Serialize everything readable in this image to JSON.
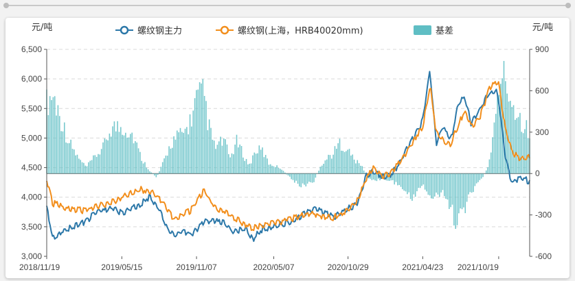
{
  "chart_data": {
    "type": "line+bar",
    "title": "",
    "y_left_unit": "元/吨",
    "y_right_unit": "元/吨",
    "y_left": {
      "min": 3000,
      "max": 6500,
      "ticks": [
        3000,
        3500,
        4000,
        4500,
        5000,
        5500,
        6000,
        6500
      ],
      "tick_labels": [
        "3,000",
        "3,500",
        "4,000",
        "4,500",
        "5,000",
        "5,500",
        "6,000",
        "6,500"
      ]
    },
    "y_right": {
      "min": -600,
      "max": 900,
      "ticks": [
        -600,
        -300,
        0,
        300,
        600,
        900
      ],
      "tick_labels": [
        "-600",
        "-300",
        "0",
        "300",
        "600",
        "900"
      ]
    },
    "x_tick_labels": [
      "2018/11/19",
      "2019/05/15",
      "2019/11/07",
      "2020/05/07",
      "2020/10/29",
      "2021/04/23",
      "2021/10/19"
    ],
    "x_range": [
      "2018/11/19",
      "2021/12/31"
    ],
    "grid": "horizontal-dashed",
    "legend_position": "top-center",
    "series": [
      {
        "name": "螺纹钢主力",
        "kind": "line",
        "axis": "left",
        "color": "#2b77a8",
        "points": [
          [
            "2018/11/19",
            3850
          ],
          [
            "2018/12/03",
            3300
          ],
          [
            "2019/01/02",
            3450
          ],
          [
            "2019/02/15",
            3580
          ],
          [
            "2019/03/20",
            3750
          ],
          [
            "2019/04/25",
            3820
          ],
          [
            "2019/05/15",
            3720
          ],
          [
            "2019/06/10",
            3820
          ],
          [
            "2019/06/28",
            3870
          ],
          [
            "2019/07/20",
            4020
          ],
          [
            "2019/08/10",
            3800
          ],
          [
            "2019/08/28",
            3500
          ],
          [
            "2019/09/15",
            3340
          ],
          [
            "2019/10/05",
            3440
          ],
          [
            "2019/10/25",
            3360
          ],
          [
            "2019/11/07",
            3450
          ],
          [
            "2019/11/25",
            3580
          ],
          [
            "2019/12/20",
            3600
          ],
          [
            "2020/01/10",
            3560
          ],
          [
            "2020/02/03",
            3400
          ],
          [
            "2020/02/28",
            3480
          ],
          [
            "2020/03/20",
            3300
          ],
          [
            "2020/04/10",
            3460
          ],
          [
            "2020/05/07",
            3500
          ],
          [
            "2020/06/01",
            3560
          ],
          [
            "2020/06/25",
            3600
          ],
          [
            "2020/07/15",
            3700
          ],
          [
            "2020/08/10",
            3800
          ],
          [
            "2020/09/01",
            3740
          ],
          [
            "2020/09/25",
            3660
          ],
          [
            "2020/10/29",
            3800
          ],
          [
            "2020/11/20",
            3900
          ],
          [
            "2020/12/10",
            4350
          ],
          [
            "2020/12/28",
            4450
          ],
          [
            "2021/01/20",
            4350
          ],
          [
            "2021/02/10",
            4400
          ],
          [
            "2021/03/01",
            4600
          ],
          [
            "2021/03/20",
            4850
          ],
          [
            "2021/04/05",
            5050
          ],
          [
            "2021/04/23",
            5300
          ],
          [
            "2021/05/10",
            6150
          ],
          [
            "2021/05/25",
            4900
          ],
          [
            "2021/06/10",
            5200
          ],
          [
            "2021/06/28",
            4950
          ],
          [
            "2021/07/15",
            5550
          ],
          [
            "2021/07/30",
            5700
          ],
          [
            "2021/08/15",
            5250
          ],
          [
            "2021/09/05",
            5500
          ],
          [
            "2021/09/25",
            5750
          ],
          [
            "2021/10/12",
            5800
          ],
          [
            "2021/10/19",
            5650
          ],
          [
            "2021/11/05",
            4600
          ],
          [
            "2021/11/20",
            4250
          ],
          [
            "2021/12/10",
            4350
          ],
          [
            "2021/12/31",
            4250
          ]
        ]
      },
      {
        "name": "螺纹钢(上海，HRB40020mm)",
        "kind": "line",
        "axis": "left",
        "color": "#f28e1c",
        "points": [
          [
            "2018/11/19",
            4300
          ],
          [
            "2018/12/03",
            3900
          ],
          [
            "2019/01/02",
            3820
          ],
          [
            "2019/02/15",
            3770
          ],
          [
            "2019/03/20",
            3850
          ],
          [
            "2019/04/25",
            3920
          ],
          [
            "2019/05/15",
            4000
          ],
          [
            "2019/06/10",
            4080
          ],
          [
            "2019/06/28",
            4130
          ],
          [
            "2019/07/20",
            4100
          ],
          [
            "2019/08/10",
            4000
          ],
          [
            "2019/08/28",
            3800
          ],
          [
            "2019/09/15",
            3620
          ],
          [
            "2019/10/05",
            3700
          ],
          [
            "2019/10/25",
            3780
          ],
          [
            "2019/11/07",
            3920
          ],
          [
            "2019/11/25",
            4120
          ],
          [
            "2019/12/20",
            3820
          ],
          [
            "2020/01/10",
            3770
          ],
          [
            "2020/02/03",
            3650
          ],
          [
            "2020/02/28",
            3550
          ],
          [
            "2020/03/20",
            3480
          ],
          [
            "2020/04/10",
            3520
          ],
          [
            "2020/05/07",
            3560
          ],
          [
            "2020/06/01",
            3600
          ],
          [
            "2020/06/25",
            3650
          ],
          [
            "2020/07/15",
            3700
          ],
          [
            "2020/08/10",
            3720
          ],
          [
            "2020/09/01",
            3680
          ],
          [
            "2020/09/25",
            3650
          ],
          [
            "2020/10/29",
            3800
          ],
          [
            "2020/11/20",
            3950
          ],
          [
            "2020/12/10",
            4300
          ],
          [
            "2020/12/28",
            4500
          ],
          [
            "2021/01/20",
            4350
          ],
          [
            "2021/02/10",
            4420
          ],
          [
            "2021/03/01",
            4600
          ],
          [
            "2021/03/20",
            4800
          ],
          [
            "2021/04/05",
            5000
          ],
          [
            "2021/04/23",
            5200
          ],
          [
            "2021/05/10",
            5900
          ],
          [
            "2021/05/25",
            5100
          ],
          [
            "2021/06/10",
            4950
          ],
          [
            "2021/06/28",
            4900
          ],
          [
            "2021/07/15",
            5200
          ],
          [
            "2021/07/30",
            5450
          ],
          [
            "2021/08/15",
            5200
          ],
          [
            "2021/09/05",
            5350
          ],
          [
            "2021/09/25",
            5800
          ],
          [
            "2021/10/12",
            5950
          ],
          [
            "2021/10/19",
            5900
          ],
          [
            "2021/11/05",
            5100
          ],
          [
            "2021/11/20",
            4750
          ],
          [
            "2021/12/10",
            4650
          ],
          [
            "2021/12/31",
            4700
          ]
        ]
      },
      {
        "name": "基差",
        "kind": "bar",
        "axis": "right",
        "color": "#5fbec4",
        "points": [
          [
            "2018/11/19",
            550
          ],
          [
            "2018/12/03",
            620
          ],
          [
            "2018/12/20",
            450
          ],
          [
            "2019/01/10",
            250
          ],
          [
            "2019/02/01",
            120
          ],
          [
            "2019/02/20",
            50
          ],
          [
            "2019/03/10",
            120
          ],
          [
            "2019/04/01",
            200
          ],
          [
            "2019/04/20",
            360
          ],
          [
            "2019/05/05",
            360
          ],
          [
            "2019/05/20",
            360
          ],
          [
            "2019/06/10",
            300
          ],
          [
            "2019/06/30",
            120
          ],
          [
            "2019/07/20",
            20
          ],
          [
            "2019/08/05",
            -30
          ],
          [
            "2019/08/20",
            80
          ],
          [
            "2019/09/10",
            250
          ],
          [
            "2019/09/25",
            290
          ],
          [
            "2019/10/10",
            320
          ],
          [
            "2019/10/25",
            420
          ],
          [
            "2019/11/07",
            580
          ],
          [
            "2019/11/25",
            620
          ],
          [
            "2019/12/05",
            380
          ],
          [
            "2019/12/20",
            200
          ],
          [
            "2020/01/10",
            260
          ],
          [
            "2020/01/25",
            120
          ],
          [
            "2020/02/10",
            250
          ],
          [
            "2020/02/25",
            150
          ],
          [
            "2020/03/10",
            60
          ],
          [
            "2020/03/25",
            180
          ],
          [
            "2020/04/10",
            180
          ],
          [
            "2020/04/25",
            80
          ],
          [
            "2020/05/10",
            60
          ],
          [
            "2020/05/25",
            40
          ],
          [
            "2020/06/10",
            -20
          ],
          [
            "2020/06/25",
            -60
          ],
          [
            "2020/07/10",
            -100
          ],
          [
            "2020/07/25",
            -80
          ],
          [
            "2020/08/10",
            -60
          ],
          [
            "2020/08/25",
            60
          ],
          [
            "2020/09/10",
            120
          ],
          [
            "2020/09/25",
            160
          ],
          [
            "2020/10/10",
            240
          ],
          [
            "2020/10/29",
            180
          ],
          [
            "2020/11/15",
            100
          ],
          [
            "2020/11/30",
            60
          ],
          [
            "2020/12/15",
            -30
          ],
          [
            "2020/12/30",
            -60
          ],
          [
            "2021/01/15",
            -40
          ],
          [
            "2021/02/01",
            -50
          ],
          [
            "2021/02/20",
            -80
          ],
          [
            "2021/03/10",
            -120
          ],
          [
            "2021/03/25",
            -200
          ],
          [
            "2021/04/10",
            -140
          ],
          [
            "2021/04/23",
            -80
          ],
          [
            "2021/05/10",
            -180
          ],
          [
            "2021/05/25",
            -180
          ],
          [
            "2021/06/10",
            -160
          ],
          [
            "2021/06/25",
            -260
          ],
          [
            "2021/07/10",
            -360
          ],
          [
            "2021/07/25",
            -300
          ],
          [
            "2021/08/10",
            -200
          ],
          [
            "2021/08/25",
            -80
          ],
          [
            "2021/09/10",
            -40
          ],
          [
            "2021/09/25",
            60
          ],
          [
            "2021/10/05",
            280
          ],
          [
            "2021/10/15",
            500
          ],
          [
            "2021/10/25",
            820
          ],
          [
            "2021/11/05",
            700
          ],
          [
            "2021/11/20",
            560
          ],
          [
            "2021/12/05",
            450
          ],
          [
            "2021/12/20",
            380
          ],
          [
            "2021/12/31",
            300
          ]
        ]
      }
    ]
  }
}
